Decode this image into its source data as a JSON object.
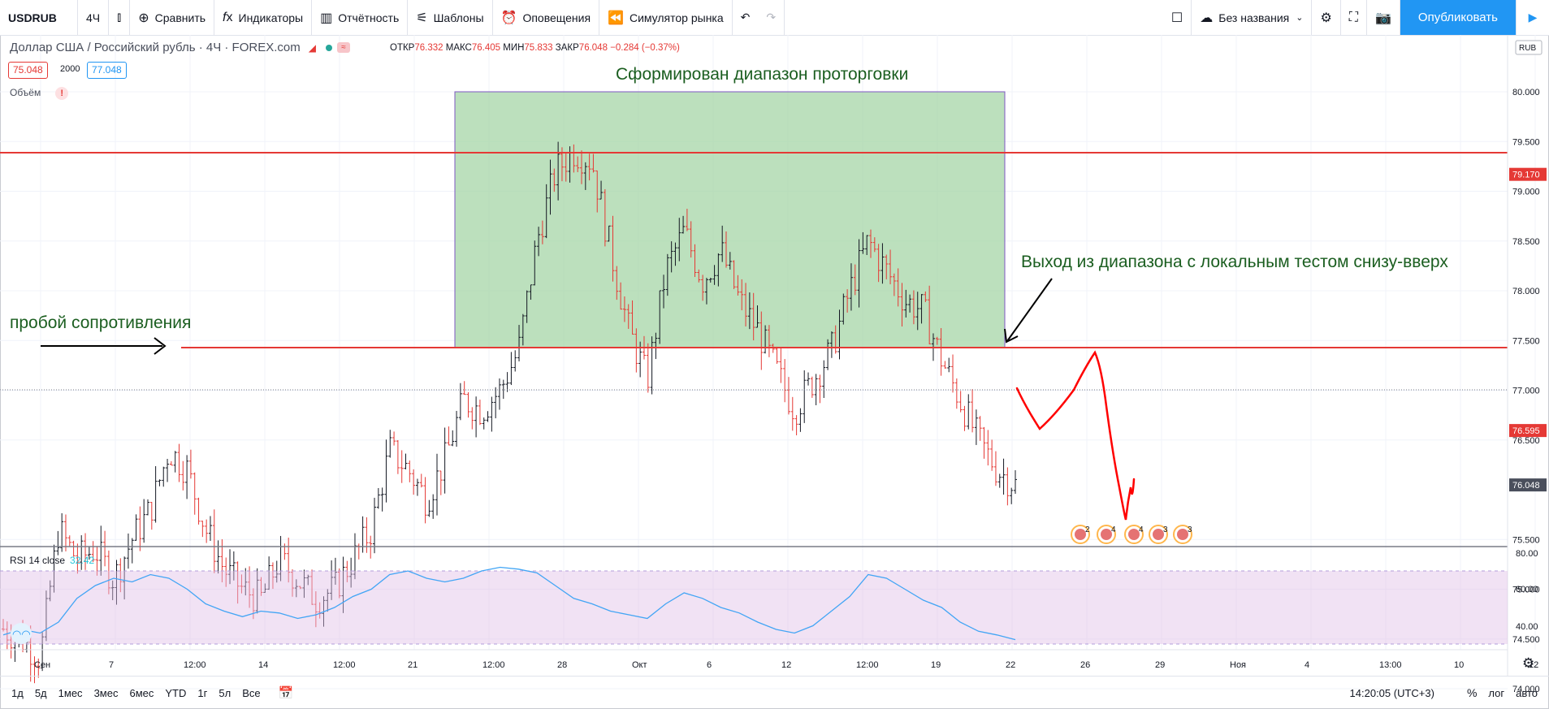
{
  "toolbar": {
    "symbol": "USDRUB",
    "interval": "4Ч",
    "compare": "Сравнить",
    "indicators": "Индикаторы",
    "reports": "Отчётность",
    "templates": "Шаблоны",
    "alerts": "Оповещения",
    "replay": "Симулятор рынка",
    "layout_name": "Без названия",
    "publish": "Опубликовать"
  },
  "legend": {
    "title": "Доллар США / Российский рубль · 4Ч · FOREX.com",
    "open_label": "ОТКР",
    "open": "76.332",
    "high_label": "МАКС",
    "high": "76.405",
    "low_label": "МИН",
    "low": "75.833",
    "close_label": "ЗАКР",
    "close": "76.048",
    "change": "−0.284 (−0.37%)",
    "bid": "75.048",
    "qty": "2000",
    "ask": "77.048",
    "volume_label": "Объём"
  },
  "rsi": {
    "label": "RSI 14 close",
    "value": "32.42"
  },
  "price_axis": {
    "currency": "RUB",
    "ticks": [
      "80.000",
      "79.500",
      "79.000",
      "78.500",
      "78.000",
      "77.500",
      "77.000",
      "76.500",
      "75.500",
      "75.000",
      "74.500",
      "74.000"
    ],
    "tags": [
      {
        "value": "79.170",
        "color": "#e53935"
      },
      {
        "value": "76.595",
        "color": "#e53935"
      },
      {
        "value": "76.048",
        "color": "#4a4f5c"
      }
    ]
  },
  "rsi_axis": {
    "ticks": [
      "80.00",
      "60.00",
      "40.00"
    ]
  },
  "time_axis": [
    "Сен",
    "7",
    "12:00",
    "14",
    "12:00",
    "21",
    "12:00",
    "28",
    "Окт",
    "6",
    "12",
    "12:00",
    "19",
    "22",
    "26",
    "29",
    "Ноя",
    "4",
    "13:00",
    "10",
    "12"
  ],
  "annotations": {
    "range": "Сформирован диапазон проторговки",
    "breakout": "пробой сопротивления",
    "exit": "Выход из диапазона с локальным тестом снизу-вверх"
  },
  "events": [
    "2",
    "4",
    "4",
    "3",
    "3"
  ],
  "bottombar": {
    "ranges": [
      "1д",
      "5д",
      "1мес",
      "3мес",
      "6мес",
      "YTD",
      "1г",
      "5л",
      "Все"
    ],
    "clock": "14:20:05 (UTC+3)",
    "percent": "%",
    "log": "лог",
    "auto": "авто"
  },
  "colors": {
    "up": "#131722",
    "down": "#e53935",
    "range_fill": "#a5d6a7",
    "rsi": "#42a5f5",
    "accent": "#2196f3"
  },
  "chart_data": {
    "type": "candlestick",
    "ylim": [
      74.0,
      80.2
    ],
    "level_lines": [
      79.17,
      76.595
    ],
    "last_price": 76.048,
    "x": [
      "Сен",
      "7",
      "12:00",
      "14",
      "12:00",
      "21",
      "12:00",
      "28",
      "Окт",
      "6",
      "12",
      "12:00",
      "19",
      "22"
    ],
    "close_path": [
      74.6,
      74.5,
      74.3,
      75.6,
      75.3,
      75.4,
      75.1,
      75.5,
      75.8,
      76.4,
      76.2,
      75.6,
      75.2,
      75.0,
      74.9,
      75.3,
      75.1,
      74.9,
      75.0,
      75.3,
      75.6,
      76.4,
      76.2,
      75.9,
      76.3,
      76.9,
      76.8,
      77.0,
      77.4,
      78.5,
      79.2,
      79.4,
      79.3,
      78.4,
      77.6,
      77.1,
      78.2,
      78.6,
      78.1,
      78.4,
      77.9,
      77.6,
      77.2,
      76.8,
      77.1,
      77.4,
      78.0,
      78.5,
      78.2,
      77.9,
      77.8,
      77.3,
      76.9,
      76.5,
      76.2,
      76.048
    ],
    "rsi_ylim": [
      28,
      82
    ],
    "rsi_band": [
      30,
      70
    ],
    "rsi_values": [
      35,
      38,
      36,
      42,
      55,
      62,
      66,
      64,
      68,
      66,
      60,
      52,
      48,
      45,
      48,
      47,
      44,
      46,
      50,
      56,
      60,
      68,
      70,
      66,
      64,
      66,
      70,
      72,
      71,
      69,
      62,
      55,
      52,
      48,
      46,
      44,
      52,
      58,
      55,
      50,
      47,
      42,
      38,
      36,
      40,
      48,
      56,
      68,
      66,
      60,
      54,
      50,
      42,
      37,
      35,
      32.42
    ]
  }
}
